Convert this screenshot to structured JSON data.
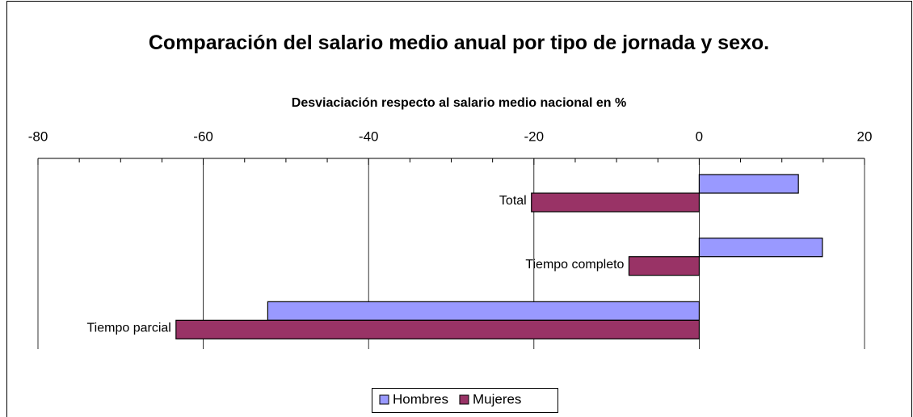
{
  "chart_data": {
    "type": "hbar",
    "title": "Comparación del salario medio anual por tipo de jornada y sexo.",
    "subtitle": "Desviaciación respecto al salario medio nacional en %",
    "categories": [
      "Total",
      "Tiempo completo",
      "Tiempo parcial"
    ],
    "series": [
      {
        "name": "Hombres",
        "color": "#9999ff",
        "values": [
          12.0,
          14.9,
          -52.2
        ]
      },
      {
        "name": "Mujeres",
        "color": "#993366",
        "values": [
          -20.3,
          -8.5,
          -63.3
        ]
      }
    ],
    "xlim": [
      -80,
      20
    ],
    "xticks": [
      -80,
      -60,
      -40,
      -20,
      0,
      20
    ],
    "xminorticks": [
      -75,
      -70,
      -65,
      -55,
      -50,
      -45,
      -35,
      -30,
      -25,
      -15,
      -10,
      -5,
      5,
      10,
      15
    ],
    "grid": true,
    "legend": "bottom"
  }
}
